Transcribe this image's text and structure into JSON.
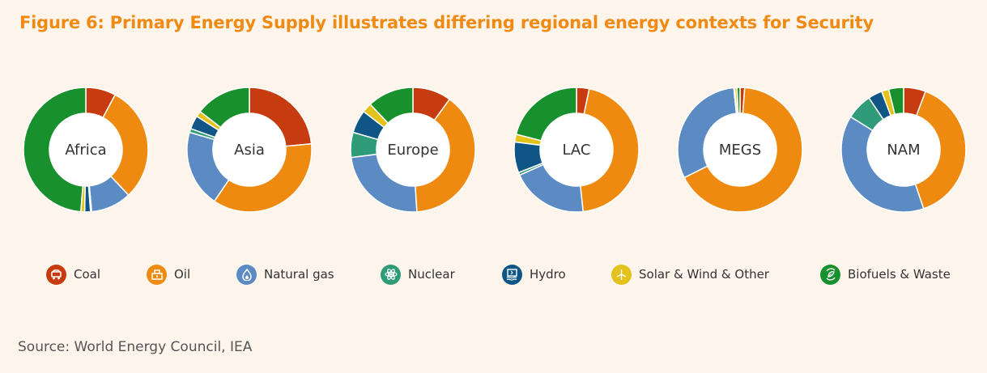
{
  "title": "Figure 6:  Primary Energy Supply illustrates differing regional energy contexts for Security",
  "source": "Source: World Energy Council, IEA",
  "colors": {
    "Coal": "#c63c10",
    "Oil": "#ef8a10",
    "Natural gas": "#5b8bc2",
    "Nuclear": "#2f9b78",
    "Hydro": "#0f5687",
    "Solar & Wind & Other": "#e3c21b",
    "Biofuels & Waste": "#19902e"
  },
  "legend": [
    {
      "label": "Coal",
      "icon": "coal-icon",
      "color": "#c63c10"
    },
    {
      "label": "Oil",
      "icon": "oil-icon",
      "color": "#ef8a10"
    },
    {
      "label": "Natural gas",
      "icon": "natural-gas-icon",
      "color": "#5b8bc2"
    },
    {
      "label": "Nuclear",
      "icon": "nuclear-icon",
      "color": "#2f9b78"
    },
    {
      "label": "Hydro",
      "icon": "hydro-icon",
      "color": "#0f5687"
    },
    {
      "label": "Solar & Wind & Other",
      "icon": "solar-wind-icon",
      "color": "#e3c21b"
    },
    {
      "label": "Biofuels & Waste",
      "icon": "biofuels-icon",
      "color": "#19902e"
    }
  ],
  "chart_data": {
    "type": "pie",
    "categories": [
      "Coal",
      "Oil",
      "Natural gas",
      "Nuclear",
      "Hydro",
      "Solar & Wind & Other",
      "Biofuels & Waste"
    ],
    "series": [
      {
        "name": "Africa",
        "values": [
          7.8,
          30.2,
          10.5,
          0.3,
          1.5,
          1.0,
          48.7
        ]
      },
      {
        "name": "Asia",
        "values": [
          23.5,
          36.0,
          20.0,
          1.0,
          3.5,
          1.5,
          14.5
        ]
      },
      {
        "name": "Europe",
        "values": [
          10.0,
          39.0,
          24.0,
          6.5,
          6.0,
          2.5,
          12.0
        ]
      },
      {
        "name": "LAC",
        "values": [
          3.3,
          45.0,
          20.0,
          0.7,
          8.0,
          2.0,
          21.0
        ]
      },
      {
        "name": "MEGS",
        "values": [
          1.2,
          66.4,
          30.8,
          0.1,
          0.1,
          0.6,
          0.8
        ]
      },
      {
        "name": "NAM",
        "values": [
          5.5,
          37.5,
          37.5,
          6.5,
          3.5,
          1.8,
          3.7
        ]
      }
    ]
  }
}
